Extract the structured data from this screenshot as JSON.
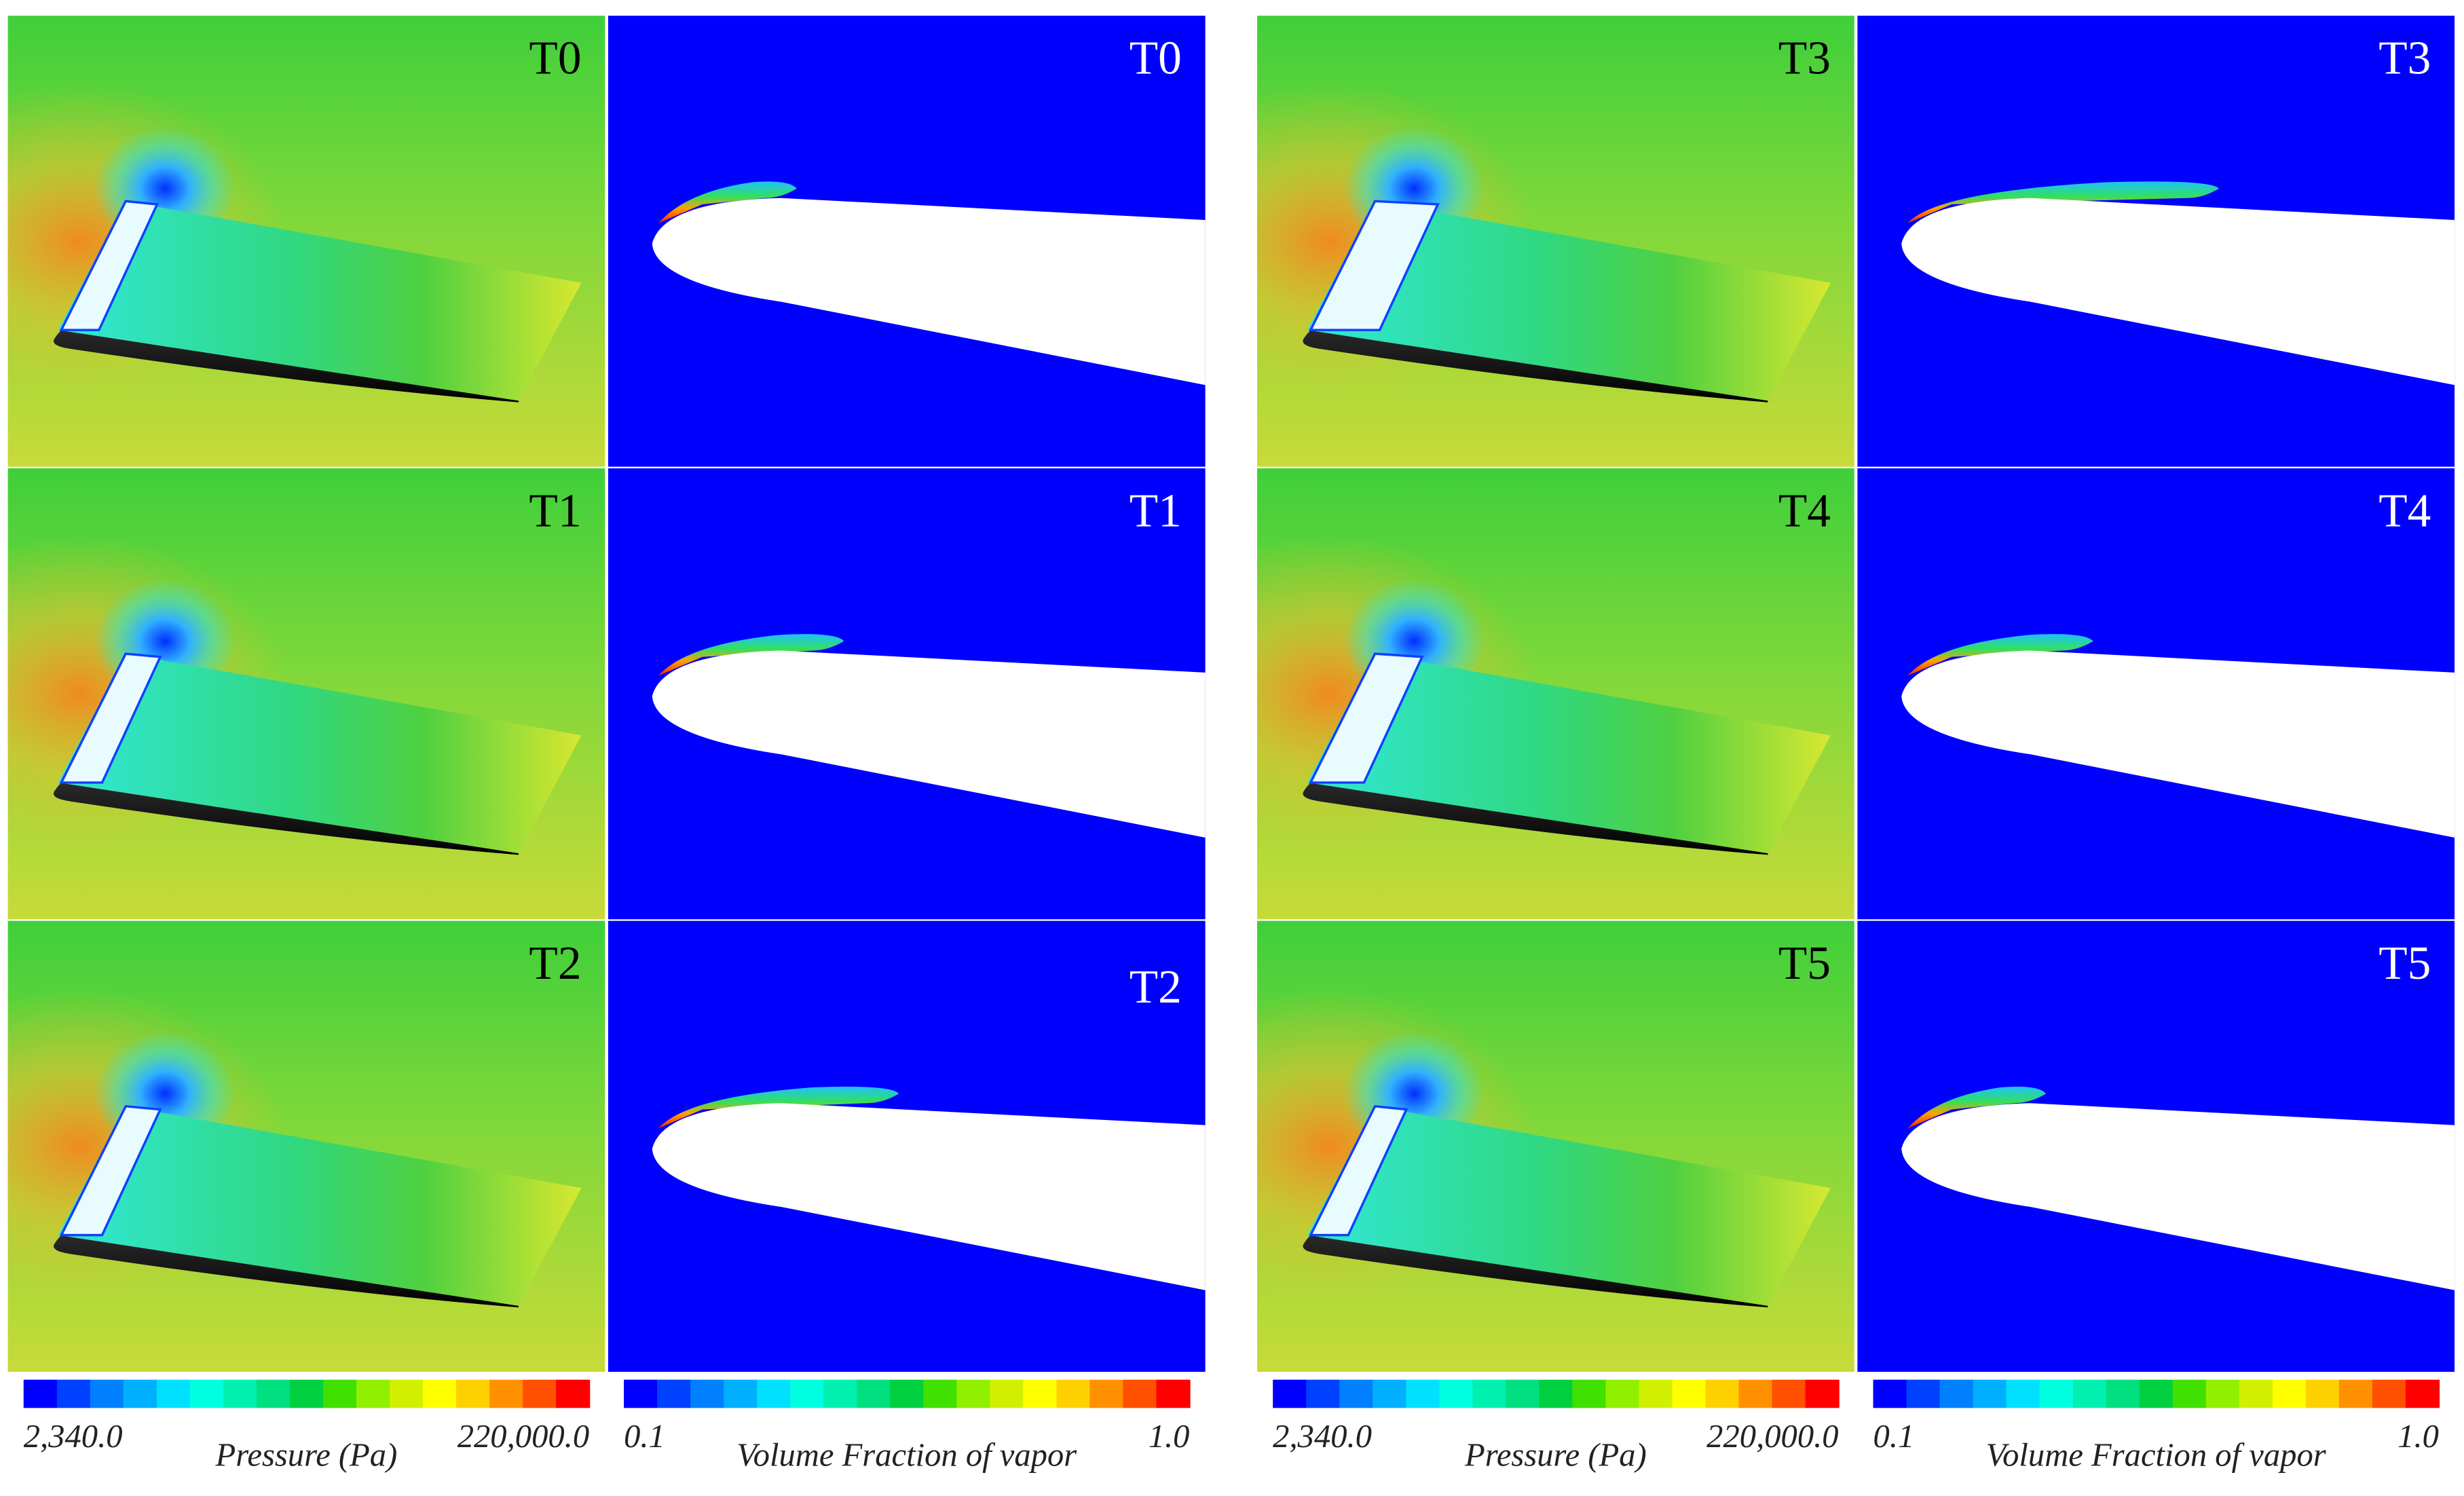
{
  "figure": {
    "groups": [
      {
        "rows": [
          {
            "pressure": "T0",
            "vapor": "T0"
          },
          {
            "pressure": "T1",
            "vapor": "T1"
          },
          {
            "pressure": "T2",
            "vapor": "T2"
          }
        ],
        "pressure_bar": {
          "min": "2,340.0",
          "title": "Pressure (Pa)",
          "max": "220,000.0"
        },
        "vapor_bar": {
          "min": "0.1",
          "title": "Volume Fraction of vapor",
          "max": "1.0"
        }
      },
      {
        "rows": [
          {
            "pressure": "T3",
            "vapor": "T3"
          },
          {
            "pressure": "T4",
            "vapor": "T4"
          },
          {
            "pressure": "T5",
            "vapor": "T5"
          }
        ],
        "pressure_bar": {
          "min": "2,340.0",
          "title": "Pressure (Pa)",
          "max": "220,000.0"
        },
        "vapor_bar": {
          "min": "0.1",
          "title": "Volume Fraction of vapor",
          "max": "1.0"
        }
      }
    ]
  }
}
